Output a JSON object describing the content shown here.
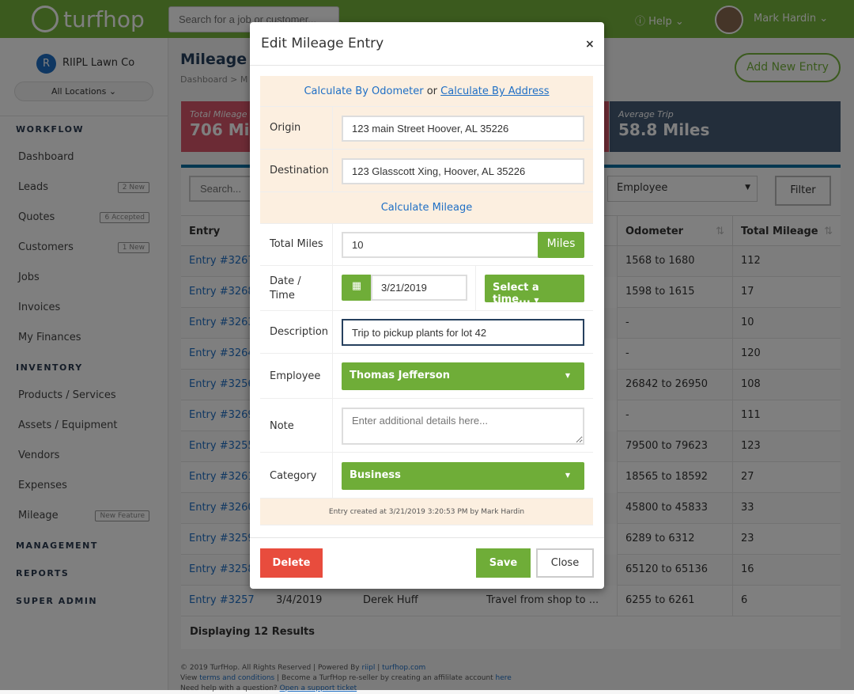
{
  "header": {
    "logo": "turfhop",
    "search_placeholder": "Search for a job or customer...",
    "help": "Help",
    "user": "Mark Hardin"
  },
  "sidebar": {
    "company_initial": "R",
    "company": "RIIPL Lawn Co",
    "locations": "All Locations",
    "sections": [
      {
        "label": "WORKFLOW",
        "items": [
          {
            "label": "Dashboard"
          },
          {
            "label": "Leads",
            "badge": "2 New"
          },
          {
            "label": "Quotes",
            "badge": "6 Accepted"
          },
          {
            "label": "Customers",
            "badge": "1 New"
          },
          {
            "label": "Jobs"
          },
          {
            "label": "Invoices"
          },
          {
            "label": "My Finances"
          }
        ]
      },
      {
        "label": "INVENTORY",
        "items": [
          {
            "label": "Products / Services"
          },
          {
            "label": "Assets / Equipment"
          },
          {
            "label": "Vendors"
          },
          {
            "label": "Expenses"
          },
          {
            "label": "Mileage",
            "badge": "New Feature"
          }
        ]
      },
      {
        "label": "MANAGEMENT",
        "items": []
      },
      {
        "label": "REPORTS",
        "items": []
      },
      {
        "label": "SUPER ADMIN",
        "items": []
      }
    ]
  },
  "page": {
    "title": "Mileage",
    "breadcrumb": "Dashboard  >  M",
    "add_button": "Add New Entry",
    "cards": [
      {
        "label": "Total Mileage",
        "value": "706 Miles"
      },
      {
        "label": "Average Trip",
        "value": "58.8 Miles"
      }
    ],
    "search_placeholder": "Search...",
    "employee_filter": "Employee",
    "filter_button": "Filter",
    "columns": [
      "Entry",
      "Odometer",
      "Total Mileage"
    ],
    "rows": [
      {
        "entry": "Entry #3267",
        "odometer": "1568 to 1680",
        "total": "112"
      },
      {
        "entry": "Entry #3268",
        "odometer": "1598 to 1615",
        "total": "17"
      },
      {
        "entry": "Entry #3263",
        "odometer": "-",
        "total": "10"
      },
      {
        "entry": "Entry #3264",
        "odometer": "-",
        "total": "120"
      },
      {
        "entry": "Entry #3256",
        "odometer": "26842 to 26950",
        "total": "108"
      },
      {
        "entry": "Entry #3269",
        "odometer": "-",
        "total": "111"
      },
      {
        "entry": "Entry #3255",
        "odometer": "79500 to 79623",
        "total": "123"
      },
      {
        "entry": "Entry #3261",
        "odometer": "18565 to 18592",
        "total": "27"
      },
      {
        "entry": "Entry #3260",
        "odometer": "45800 to 45833",
        "total": "33"
      },
      {
        "entry": "Entry #3259",
        "odometer": "6289 to 6312",
        "total": "23"
      },
      {
        "entry": "Entry #3258",
        "odometer": "65120 to 65136",
        "total": "16"
      },
      {
        "entry": "Entry #3257",
        "date": "3/4/2019",
        "employee": "Derek Huff",
        "description": "Travel from shop to ...",
        "odometer": "6255 to 6261",
        "total": "6"
      }
    ],
    "results": "Displaying 12 Results",
    "footer": {
      "l1a": "© 2019 TurfHop. All Rights Reserved | Powered By ",
      "l1b": "riipl",
      "l1c": " | ",
      "l1d": "turfhop.com",
      "l2a": "View ",
      "l2b": "terms and conditions",
      "l2c": " | Become a TurfHop re-seller by creating an affililate account ",
      "l2d": "here",
      "l3a": "Need help with a question? ",
      "l3b": "Open a support ticket"
    }
  },
  "modal": {
    "title": "Edit Mileage Entry",
    "close_x": "×",
    "calc_odometer": "Calculate By Odometer",
    "or": " or ",
    "calc_address": "Calculate By Address",
    "origin_label": "Origin",
    "origin": "123 main Street Hoover, AL 35226",
    "destination_label": "Destination",
    "destination": "123 Glasscott Xing, Hoover, AL 35226",
    "calc_mileage": "Calculate Mileage",
    "total_label": "Total Miles",
    "total": "10",
    "miles_unit": "Miles",
    "date_label": "Date / Time",
    "date": "3/21/2019",
    "time": "Select a time...",
    "desc_label": "Description",
    "description": "Trip to pickup plants for lot 42",
    "employee_label": "Employee",
    "employee": "Thomas Jefferson",
    "note_label": "Note",
    "note_placeholder": "Enter additional details here...",
    "category_label": "Category",
    "category": "Business",
    "created": "Entry created at 3/21/2019 3:20:53 PM by Mark Hardin",
    "delete": "Delete",
    "save": "Save",
    "close": "Close"
  },
  "colors": {
    "brand_green": "#76b43c",
    "danger": "#e84c3d",
    "link": "#1f6fc5"
  }
}
